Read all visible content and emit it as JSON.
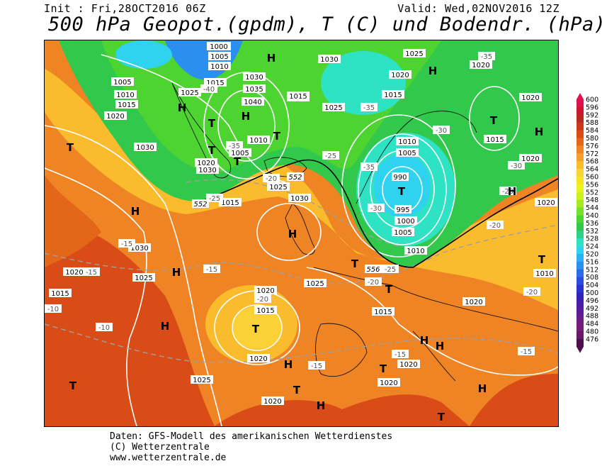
{
  "header": {
    "init": "Init : Fri,28OCT2016 06Z",
    "valid": "Valid: Wed,02NOV2016 12Z",
    "title": "500 hPa Geopot.(gpdm), T (C) und Bodendr. (hPa)"
  },
  "legend": {
    "values": [
      "600",
      "596",
      "592",
      "588",
      "584",
      "580",
      "576",
      "572",
      "568",
      "564",
      "560",
      "556",
      "552",
      "548",
      "544",
      "540",
      "536",
      "532",
      "528",
      "524",
      "520",
      "516",
      "512",
      "508",
      "504",
      "500",
      "496",
      "492",
      "488",
      "484",
      "480",
      "476"
    ],
    "colors": [
      "#e0114f",
      "#cc1530",
      "#b82a20",
      "#c8391e",
      "#d94c18",
      "#e36619",
      "#ee8424",
      "#f5a02a",
      "#fabc2c",
      "#fbd236",
      "#f5e41f",
      "#e9f21d",
      "#cdf01f",
      "#a3ea21",
      "#76e02c",
      "#4dd431",
      "#32c84c",
      "#2ed18a",
      "#2ee2c4",
      "#2fd2ef",
      "#2cb1f2",
      "#2a8fee",
      "#2a6ce7",
      "#2a4dde",
      "#2a33cf",
      "#3122b8",
      "#4a1ca6",
      "#5e1b95",
      "#6d1b86",
      "#761b78",
      "#6a1767",
      "#4f0f4d"
    ]
  },
  "map_labels": {
    "isobars": [
      "1000",
      "1005",
      "1010",
      "1015",
      "1020",
      "1025",
      "1030",
      "1035",
      "1040",
      "990",
      "995"
    ],
    "temperatures": [
      "-15",
      "-20",
      "-25",
      "-30",
      "-35",
      "-40",
      "-10"
    ],
    "geopotential": [
      "552",
      "556"
    ],
    "high_symbol": "H",
    "low_symbol": "T"
  },
  "footer": {
    "line1": "Daten: GFS-Modell des amerikanischen Wetterdienstes",
    "line2": "(C) Wetterzentrale",
    "line3": "www.wetterzentrale.de"
  }
}
